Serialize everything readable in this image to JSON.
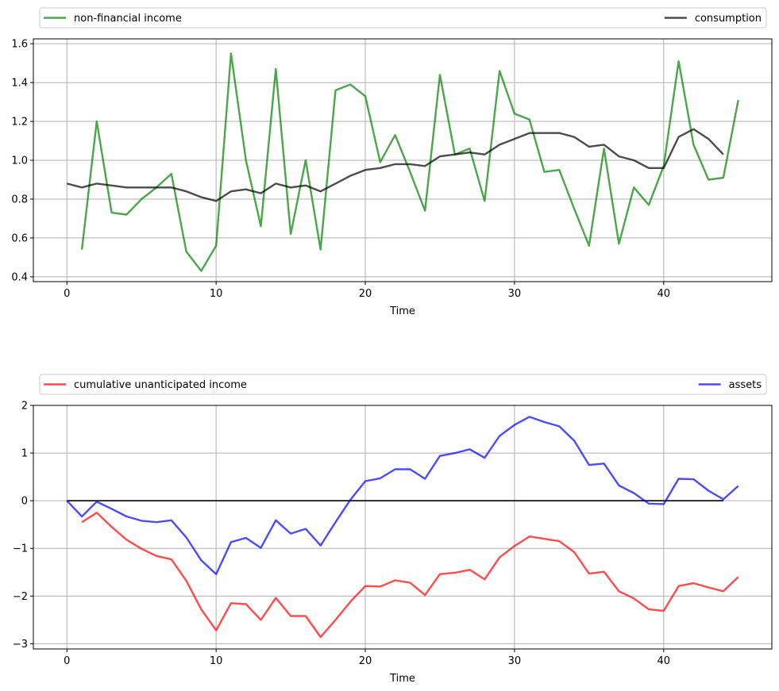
{
  "chart_data": [
    {
      "type": "line",
      "xlabel": "Time",
      "ylabel": "",
      "xlim": [
        -2.25,
        47.25
      ],
      "ylim": [
        0.375,
        1.625
      ],
      "xticks": [
        0,
        10,
        20,
        30,
        40
      ],
      "yticks": [
        0.4,
        0.6,
        0.8,
        1.0,
        1.2,
        1.4,
        1.6
      ],
      "ytick_labels": [
        "0.4",
        "0.6",
        "0.8",
        "1.0",
        "1.2",
        "1.4",
        "1.6"
      ],
      "grid": true,
      "legend_placement": "above plot, expanded across width",
      "series": [
        {
          "name": "non-financial income",
          "color": "#008000",
          "x": [
            1,
            2,
            3,
            4,
            5,
            6,
            7,
            8,
            9,
            10,
            11,
            12,
            13,
            14,
            15,
            16,
            17,
            18,
            19,
            20,
            21,
            22,
            23,
            24,
            25,
            26,
            27,
            28,
            29,
            30,
            31,
            32,
            33,
            34,
            35,
            36,
            37,
            38,
            39,
            40,
            41,
            42,
            43,
            44,
            45
          ],
          "values": [
            0.54,
            1.2,
            0.73,
            0.72,
            0.8,
            0.86,
            0.93,
            0.53,
            0.43,
            0.56,
            1.55,
            1.0,
            0.66,
            1.47,
            0.62,
            1.0,
            0.54,
            1.36,
            1.39,
            1.33,
            0.99,
            1.13,
            0.94,
            0.74,
            1.44,
            1.03,
            1.06,
            0.79,
            1.46,
            1.24,
            1.21,
            0.94,
            0.95,
            0.75,
            0.56,
            1.06,
            0.57,
            0.86,
            0.77,
            0.97,
            1.51,
            1.08,
            0.9,
            0.91,
            1.31
          ]
        },
        {
          "name": "consumption",
          "color": "#000000",
          "x": [
            0,
            1,
            2,
            3,
            4,
            5,
            6,
            7,
            8,
            9,
            10,
            11,
            12,
            13,
            14,
            15,
            16,
            17,
            18,
            19,
            20,
            21,
            22,
            23,
            24,
            25,
            26,
            27,
            28,
            29,
            30,
            31,
            32,
            33,
            34,
            35,
            36,
            37,
            38,
            39,
            40,
            41,
            42,
            43,
            44
          ],
          "values": [
            0.88,
            0.86,
            0.88,
            0.87,
            0.86,
            0.86,
            0.86,
            0.86,
            0.84,
            0.81,
            0.79,
            0.84,
            0.85,
            0.83,
            0.88,
            0.86,
            0.87,
            0.84,
            0.88,
            0.92,
            0.95,
            0.96,
            0.98,
            0.98,
            0.97,
            1.02,
            1.03,
            1.04,
            1.03,
            1.08,
            1.11,
            1.14,
            1.14,
            1.14,
            1.12,
            1.07,
            1.08,
            1.02,
            1.0,
            0.96,
            0.96,
            1.12,
            1.16,
            1.11,
            1.03
          ]
        }
      ]
    },
    {
      "type": "line",
      "xlabel": "Time",
      "ylabel": "",
      "xlim": [
        -2.25,
        47.25
      ],
      "ylim": [
        -3.11,
        2.0
      ],
      "xticks": [
        0,
        10,
        20,
        30,
        40
      ],
      "yticks": [
        -3,
        -2,
        -1,
        0,
        1,
        2
      ],
      "ytick_labels": [
        "−3",
        "−2",
        "−1",
        "0",
        "1",
        "2"
      ],
      "grid": true,
      "legend_placement": "above plot, expanded across width",
      "hline": {
        "y": 0,
        "x_from": 0,
        "x_to": 44,
        "color": "#000000"
      },
      "series": [
        {
          "name": "cumulative unanticipated income",
          "color": "#ff0000",
          "x": [
            1,
            2,
            3,
            4,
            5,
            6,
            7,
            8,
            9,
            10,
            11,
            12,
            13,
            14,
            15,
            16,
            17,
            18,
            19,
            20,
            21,
            22,
            23,
            24,
            25,
            26,
            27,
            28,
            29,
            30,
            31,
            32,
            33,
            34,
            35,
            36,
            37,
            38,
            39,
            40,
            41,
            42,
            43,
            44,
            45
          ],
          "values": [
            -0.45,
            -0.25,
            -0.55,
            -0.82,
            -1.01,
            -1.16,
            -1.23,
            -1.68,
            -2.28,
            -2.72,
            -2.15,
            -2.17,
            -2.5,
            -2.04,
            -2.42,
            -2.42,
            -2.86,
            -2.5,
            -2.12,
            -1.79,
            -1.8,
            -1.67,
            -1.72,
            -1.98,
            -1.54,
            -1.51,
            -1.45,
            -1.65,
            -1.19,
            -0.95,
            -0.75,
            -0.8,
            -0.85,
            -1.08,
            -1.53,
            -1.49,
            -1.9,
            -2.05,
            -2.28,
            -2.31,
            -1.79,
            -1.73,
            -1.82,
            -1.9,
            -1.6
          ]
        },
        {
          "name": "assets",
          "color": "#0000ff",
          "x": [
            0,
            1,
            2,
            3,
            4,
            5,
            6,
            7,
            8,
            9,
            10,
            11,
            12,
            13,
            14,
            15,
            16,
            17,
            18,
            19,
            20,
            21,
            22,
            23,
            24,
            25,
            26,
            27,
            28,
            29,
            30,
            31,
            32,
            33,
            34,
            35,
            36,
            37,
            38,
            39,
            40,
            41,
            42,
            43,
            44,
            45
          ],
          "values": [
            0.0,
            -0.33,
            -0.02,
            -0.17,
            -0.33,
            -0.42,
            -0.45,
            -0.41,
            -0.77,
            -1.25,
            -1.54,
            -0.87,
            -0.78,
            -0.99,
            -0.41,
            -0.69,
            -0.59,
            -0.94,
            -0.45,
            0.02,
            0.41,
            0.47,
            0.66,
            0.66,
            0.46,
            0.94,
            1.0,
            1.08,
            0.9,
            1.36,
            1.59,
            1.76,
            1.65,
            1.56,
            1.26,
            0.75,
            0.78,
            0.32,
            0.16,
            -0.06,
            -0.07,
            0.46,
            0.45,
            0.21,
            0.03,
            0.31
          ]
        }
      ]
    }
  ]
}
